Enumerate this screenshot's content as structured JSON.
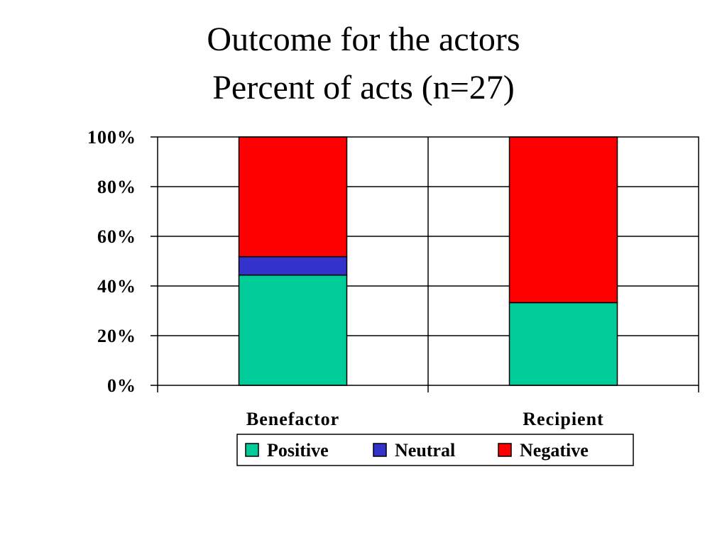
{
  "title": {
    "line1": "Outcome for the actors",
    "line2": "Percent of acts (n=27)"
  },
  "chart_data": {
    "type": "bar",
    "stacked": true,
    "categories": [
      "Benefactor",
      "Recipient"
    ],
    "series": [
      {
        "name": "Positive",
        "values": [
          44.4,
          33.3
        ],
        "color": "#00cc99"
      },
      {
        "name": "Neutral",
        "values": [
          7.4,
          0
        ],
        "color": "#3333cc"
      },
      {
        "name": "Negative",
        "values": [
          48.2,
          66.7
        ],
        "color": "#ff0000"
      }
    ],
    "ylim": [
      0,
      100
    ],
    "yticks": [
      0,
      20,
      40,
      60,
      80,
      100
    ],
    "ytick_labels": [
      "0%",
      "20%",
      "40%",
      "60%",
      "80%",
      "100%"
    ],
    "grid": true,
    "legend_position": "bottom"
  }
}
